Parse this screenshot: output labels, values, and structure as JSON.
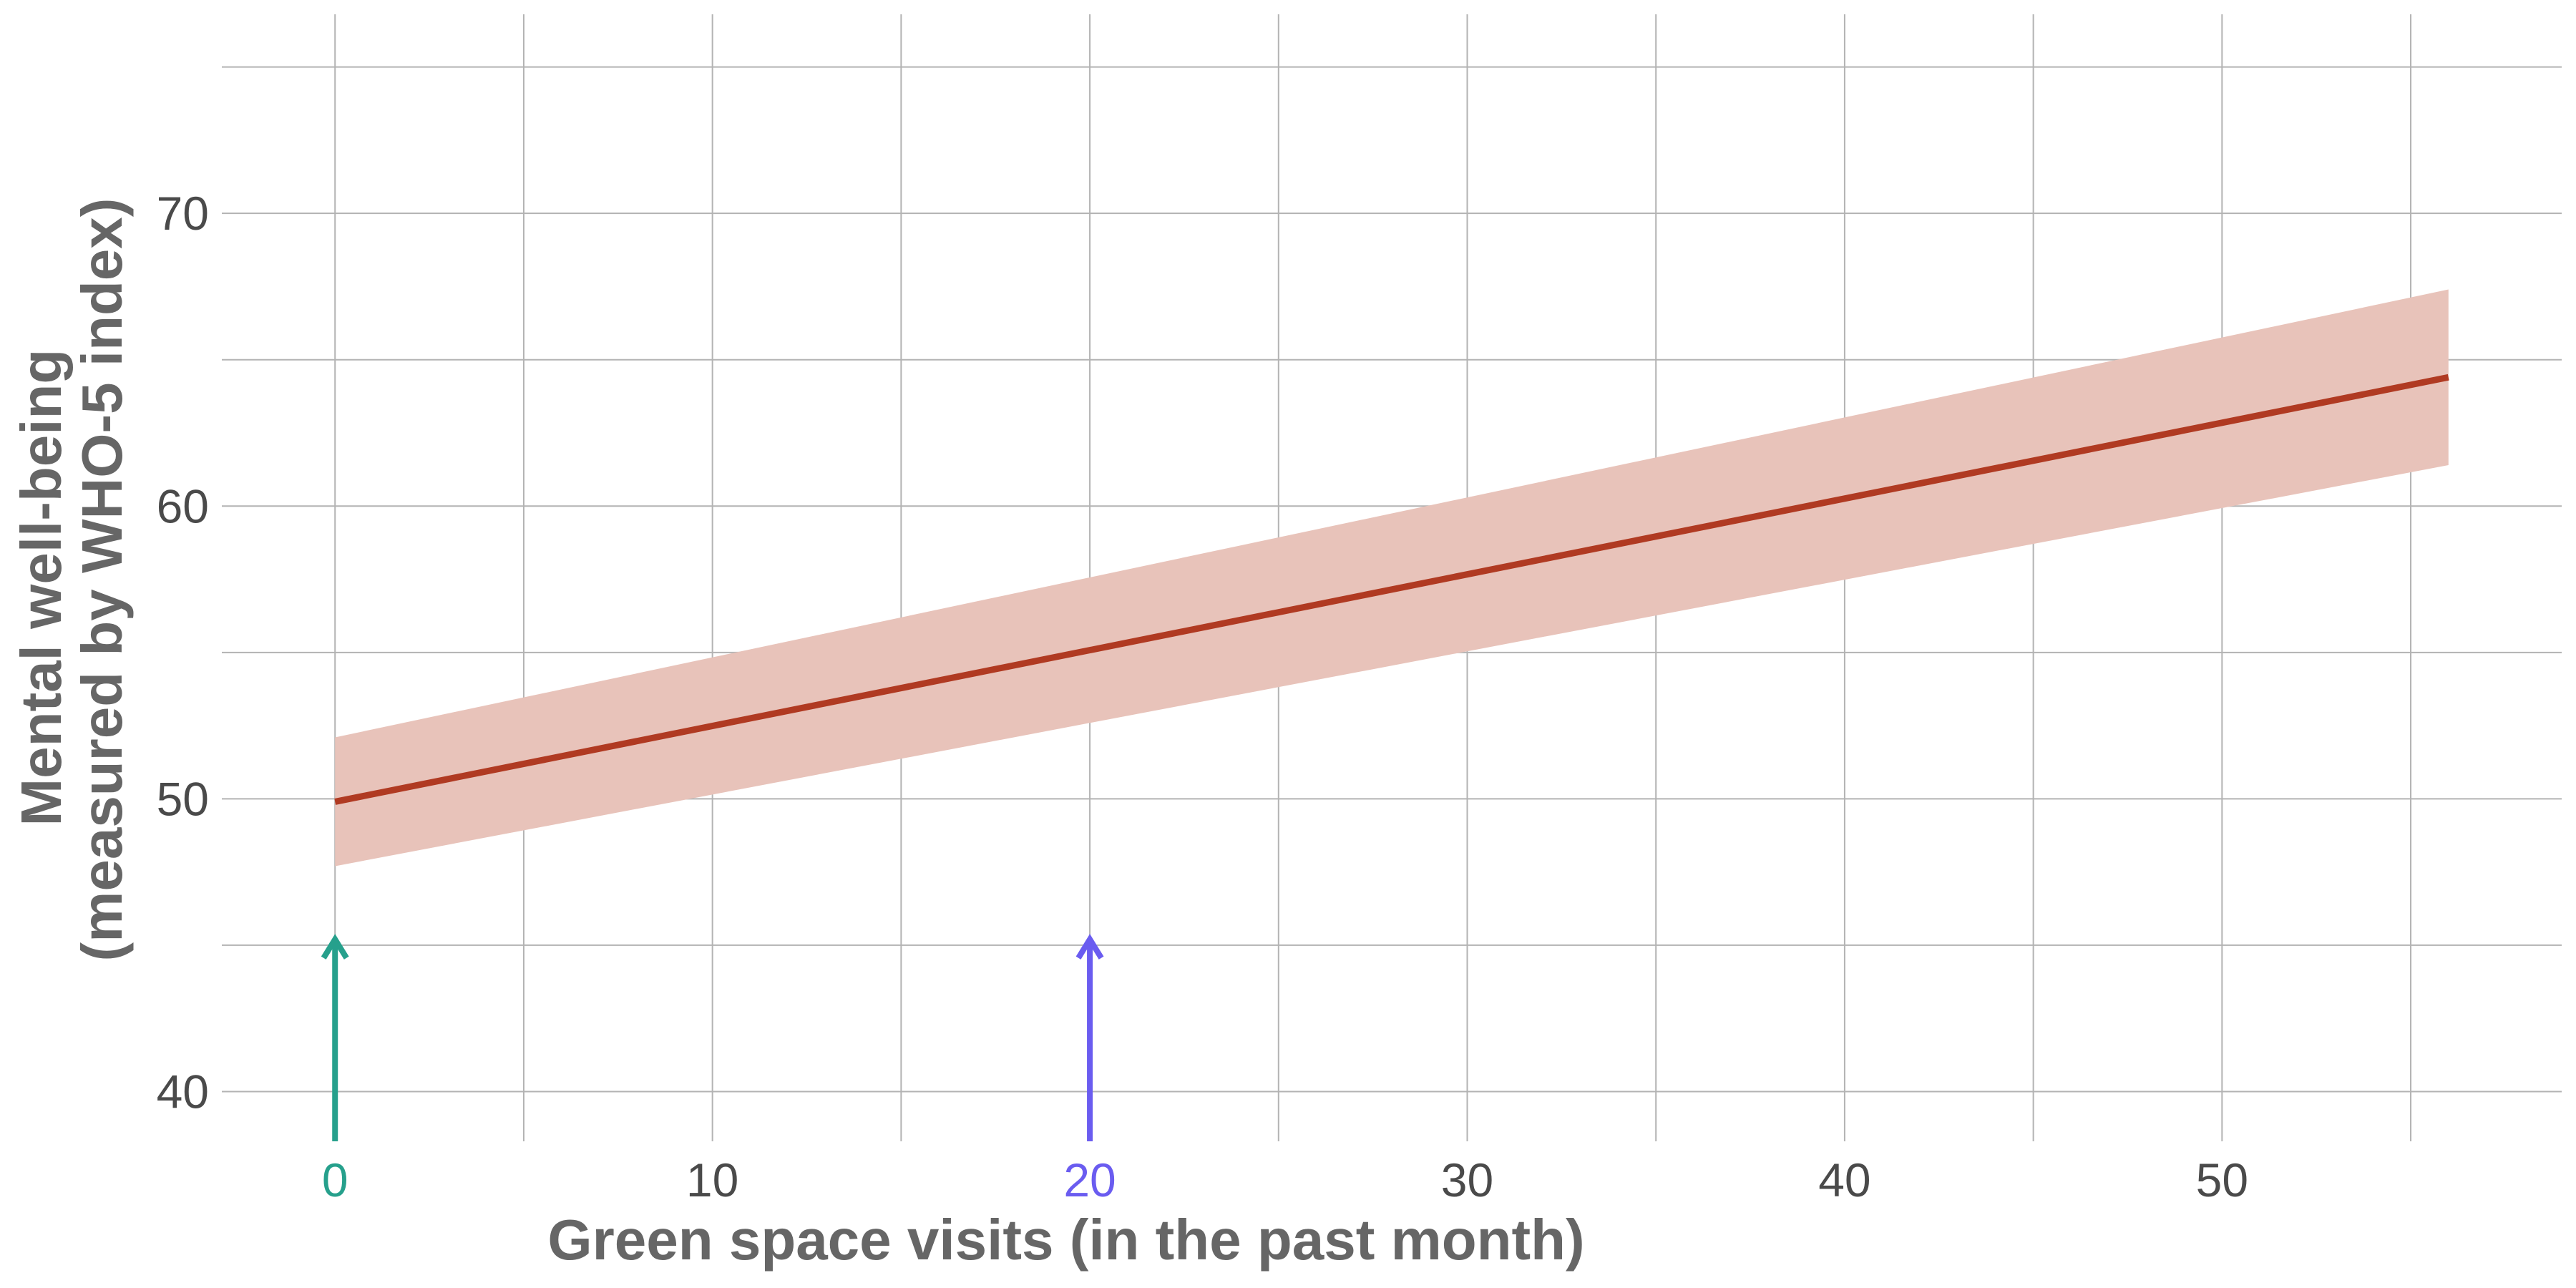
{
  "chart_data": {
    "type": "line",
    "xlabel": "Green space visits (in the past month)",
    "ylabel": [
      "Mental well-being",
      "(measured by WHO-5 index)"
    ],
    "xlim": [
      -3,
      59
    ],
    "ylim": [
      38.3,
      76.8
    ],
    "x_ticks": [
      "0",
      "10",
      "20",
      "30",
      "40",
      "50"
    ],
    "y_ticks": [
      "40",
      "50",
      "60",
      "70"
    ],
    "x_minor_grid": [
      5,
      15,
      25,
      35,
      45,
      55
    ],
    "y_minor_grid": [
      45,
      55,
      65,
      75
    ],
    "grid": true,
    "series": [
      {
        "x": [
          0,
          56
        ],
        "y": [
          49.9,
          64.4
        ],
        "ci_lower": [
          47.7,
          61.4
        ],
        "ci_upper": [
          52.1,
          67.4
        ],
        "color": "#b03a22",
        "band_color": "#e8c3ba"
      }
    ],
    "annotations": [
      {
        "type": "arrow",
        "x": 0,
        "y_from": 38.3,
        "y_to": 45.2,
        "color": "#26a08c",
        "tick_label": "0"
      },
      {
        "type": "arrow",
        "x": 20,
        "y_from": 38.3,
        "y_to": 45.2,
        "color": "#6a5cf0",
        "tick_label": "20"
      }
    ]
  }
}
